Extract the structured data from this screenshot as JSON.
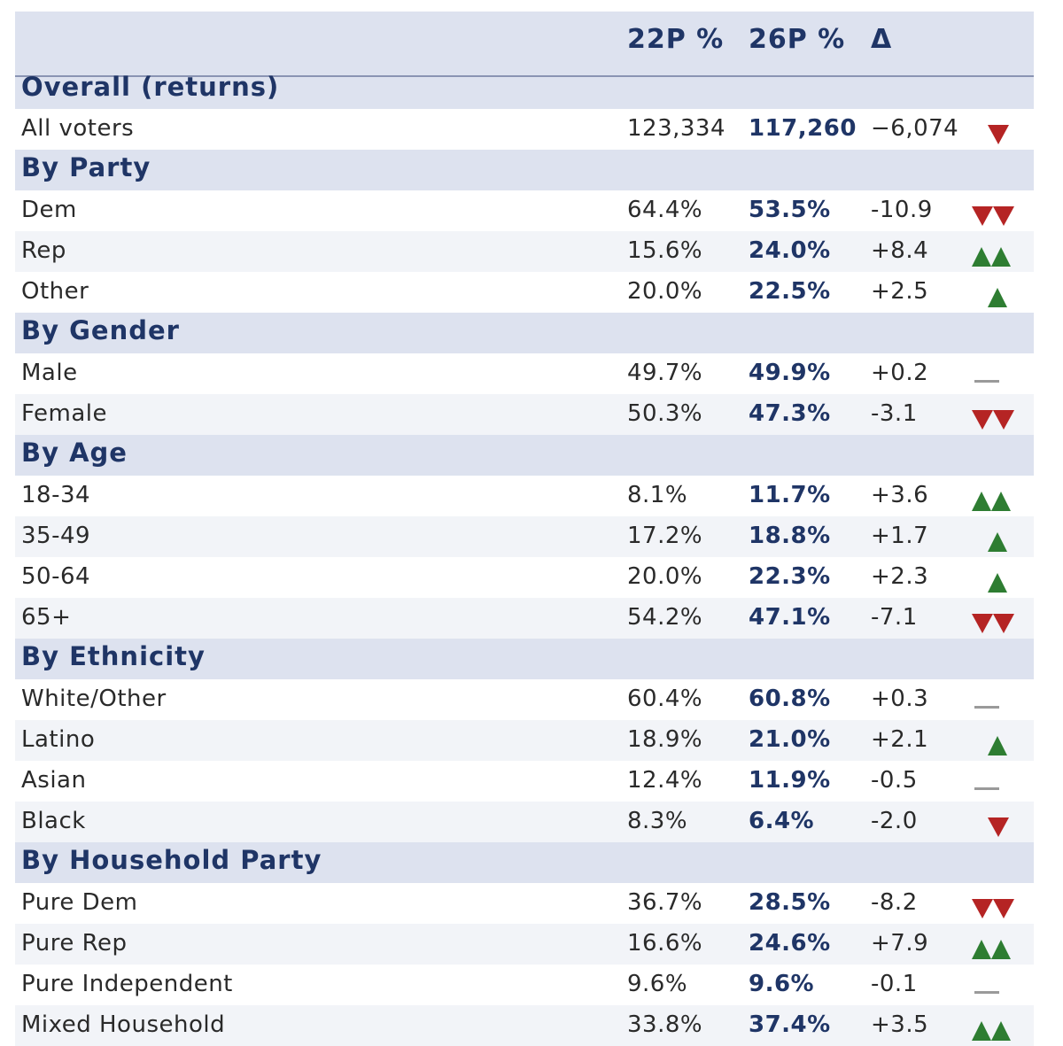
{
  "headers": {
    "col_22p": "22P %",
    "col_26p": "26P %",
    "col_delta": "Δ"
  },
  "colors": {
    "up": "#2e7d32",
    "down": "#b52424",
    "flat": "#9a9a9a",
    "accent": "#1f3566",
    "section_bg": "#dde2ef"
  },
  "sections": [
    {
      "title": "Overall (returns)",
      "rows": [
        {
          "label": "All voters",
          "p22": "123,334",
          "p26": "117,260",
          "delta": "−6,074",
          "indicator": "down-1"
        }
      ]
    },
    {
      "title": "By Party",
      "rows": [
        {
          "label": "Dem",
          "p22": "64.4%",
          "p26": "53.5%",
          "delta": "-10.9",
          "indicator": "down-2"
        },
        {
          "label": "Rep",
          "p22": "15.6%",
          "p26": "24.0%",
          "delta": "+8.4",
          "indicator": "up-2"
        },
        {
          "label": "Other",
          "p22": "20.0%",
          "p26": "22.5%",
          "delta": "+2.5",
          "indicator": "up-1"
        }
      ]
    },
    {
      "title": "By Gender",
      "rows": [
        {
          "label": "Male",
          "p22": "49.7%",
          "p26": "49.9%",
          "delta": "+0.2",
          "indicator": "flat"
        },
        {
          "label": "Female",
          "p22": "50.3%",
          "p26": "47.3%",
          "delta": "-3.1",
          "indicator": "down-2"
        }
      ]
    },
    {
      "title": "By Age",
      "rows": [
        {
          "label": "18-34",
          "p22": "8.1%",
          "p26": "11.7%",
          "delta": "+3.6",
          "indicator": "up-2"
        },
        {
          "label": "35-49",
          "p22": "17.2%",
          "p26": "18.8%",
          "delta": "+1.7",
          "indicator": "up-1"
        },
        {
          "label": "50-64",
          "p22": "20.0%",
          "p26": "22.3%",
          "delta": "+2.3",
          "indicator": "up-1"
        },
        {
          "label": "65+",
          "p22": "54.2%",
          "p26": "47.1%",
          "delta": "-7.1",
          "indicator": "down-2"
        }
      ]
    },
    {
      "title": "By Ethnicity",
      "rows": [
        {
          "label": "White/Other",
          "p22": "60.4%",
          "p26": "60.8%",
          "delta": "+0.3",
          "indicator": "flat"
        },
        {
          "label": "Latino",
          "p22": "18.9%",
          "p26": "21.0%",
          "delta": "+2.1",
          "indicator": "up-1"
        },
        {
          "label": "Asian",
          "p22": "12.4%",
          "p26": "11.9%",
          "delta": "-0.5",
          "indicator": "flat"
        },
        {
          "label": "Black",
          "p22": "8.3%",
          "p26": "6.4%",
          "delta": "-2.0",
          "indicator": "down-1"
        }
      ]
    },
    {
      "title": "By Household Party",
      "rows": [
        {
          "label": "Pure Dem",
          "p22": "36.7%",
          "p26": "28.5%",
          "delta": "-8.2",
          "indicator": "down-2"
        },
        {
          "label": "Pure Rep",
          "p22": "16.6%",
          "p26": "24.6%",
          "delta": "+7.9",
          "indicator": "up-2"
        },
        {
          "label": "Pure Independent",
          "p22": "9.6%",
          "p26": "9.6%",
          "delta": "-0.1",
          "indicator": "flat"
        },
        {
          "label": "Mixed Household",
          "p22": "33.8%",
          "p26": "37.4%",
          "delta": "+3.5",
          "indicator": "up-2"
        }
      ]
    }
  ]
}
